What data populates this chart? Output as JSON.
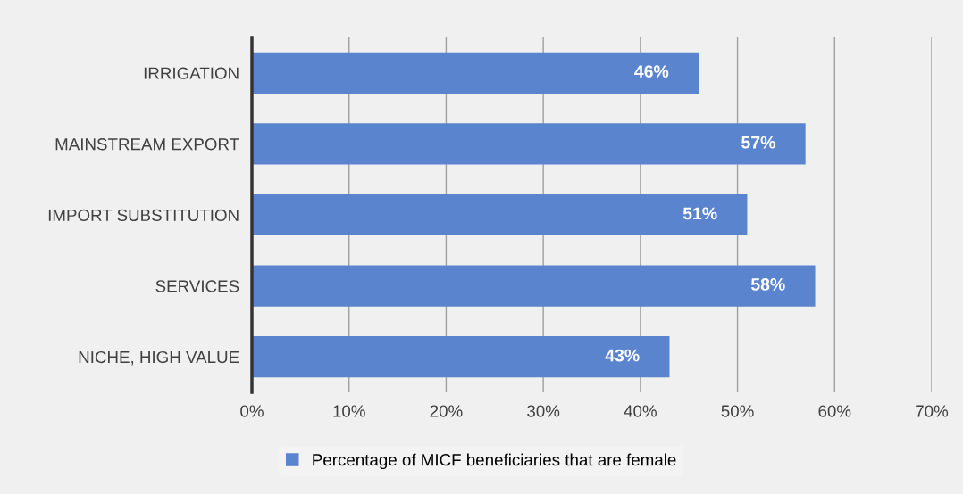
{
  "chart_data": {
    "type": "bar",
    "orientation": "horizontal",
    "categories": [
      "IRRIGATION",
      "MAINSTREAM EXPORT",
      "IMPORT SUBSTITUTION",
      "SERVICES",
      "NICHE, HIGH VALUE"
    ],
    "series": [
      {
        "name": "Percentage of MICF beneficiaries that are female",
        "color": "#5b84cf",
        "values": [
          46,
          57,
          51,
          58,
          43
        ],
        "value_labels": [
          "46%",
          "57%",
          "51%",
          "58%",
          "43%"
        ]
      }
    ],
    "xlim": [
      0,
      70
    ],
    "xticks": [
      {
        "value": 0,
        "label": "0%"
      },
      {
        "value": 10,
        "label": "10%"
      },
      {
        "value": 20,
        "label": "20%"
      },
      {
        "value": 30,
        "label": "30%"
      },
      {
        "value": 40,
        "label": "40%"
      },
      {
        "value": 50,
        "label": "50%"
      },
      {
        "value": 60,
        "label": "60%"
      },
      {
        "value": 70,
        "label": "70%"
      }
    ],
    "grid": "x",
    "legend": "bottom"
  }
}
